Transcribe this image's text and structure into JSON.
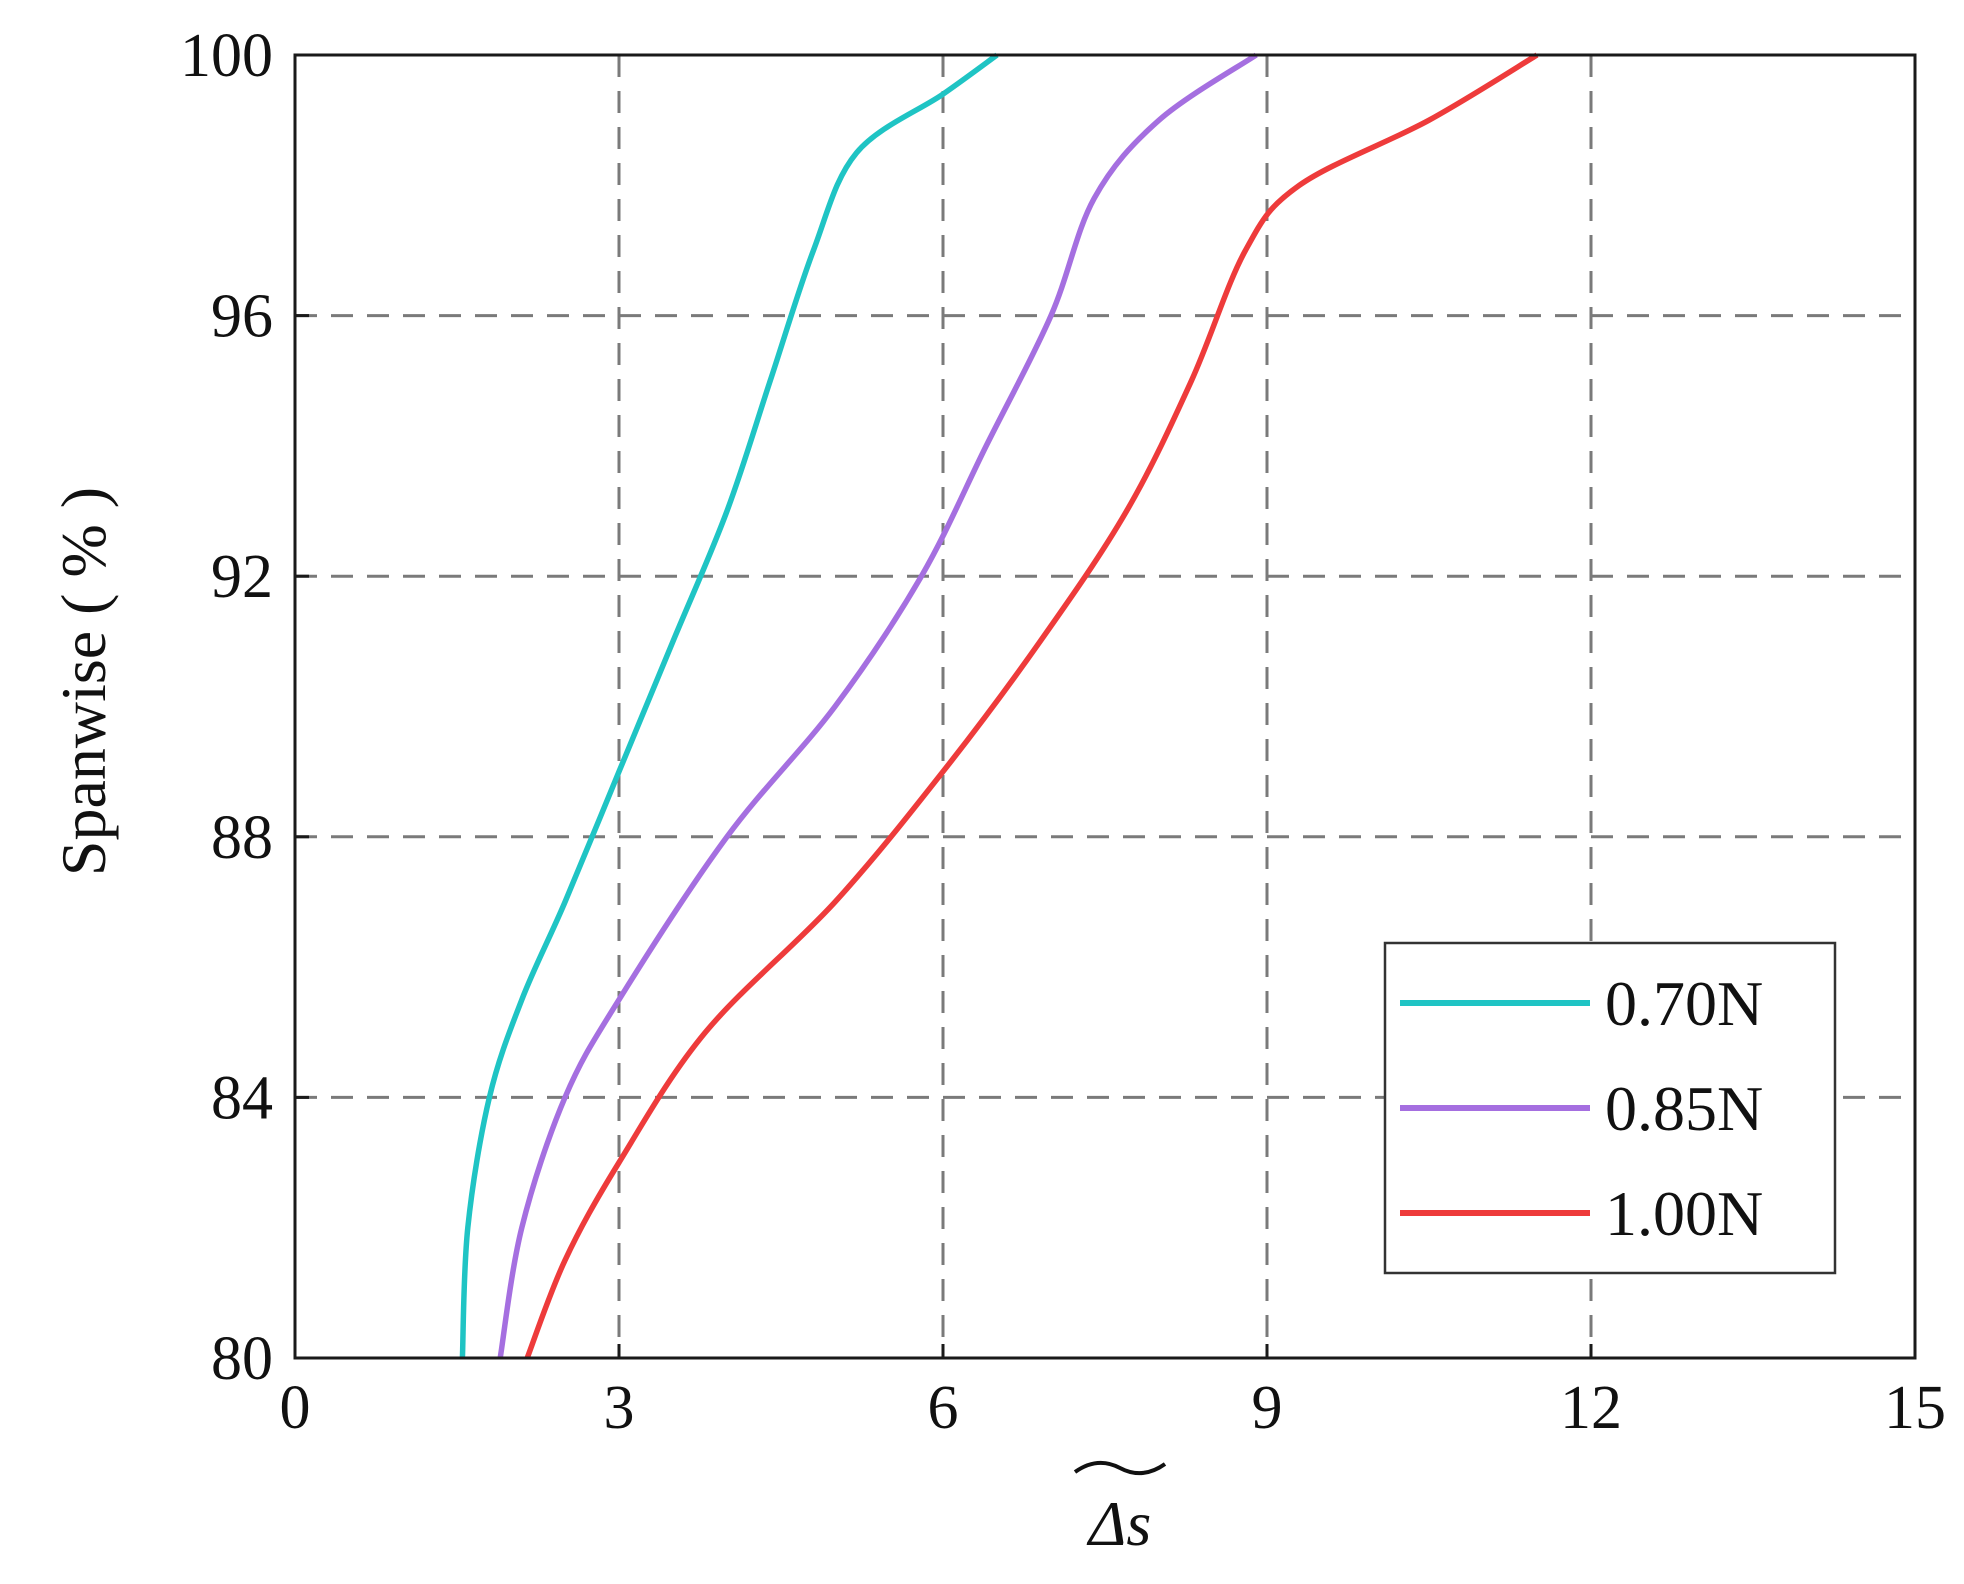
{
  "chart_data": {
    "type": "line",
    "title": "",
    "xlabel": "Δs",
    "xlabel_tilde": true,
    "ylabel": "Spanwise ( % )",
    "xlim": [
      0,
      15
    ],
    "ylim": [
      80,
      100
    ],
    "x_ticks": [
      0,
      3,
      6,
      9,
      12,
      15
    ],
    "y_ticks": [
      80,
      84,
      88,
      92,
      96,
      100
    ],
    "x_tick_labels": [
      "0",
      "3",
      "6",
      "9",
      "12",
      "15"
    ],
    "y_tick_labels": [
      "80",
      "84",
      "88",
      "92",
      "96",
      "100"
    ],
    "grid": true,
    "grid_style": "dashed",
    "legend_position": "bottom-right",
    "series": [
      {
        "name": "0.70N",
        "color": "#1fc4c4",
        "points": [
          [
            1.55,
            80
          ],
          [
            1.6,
            82
          ],
          [
            1.8,
            84
          ],
          [
            2.1,
            85.5
          ],
          [
            2.5,
            87
          ],
          [
            3.0,
            89
          ],
          [
            3.5,
            91
          ],
          [
            4.0,
            93
          ],
          [
            4.4,
            95
          ],
          [
            4.8,
            97
          ],
          [
            5.2,
            98.5
          ],
          [
            6.0,
            99.4
          ],
          [
            6.5,
            100
          ]
        ]
      },
      {
        "name": "0.85N",
        "color": "#a56fe0",
        "points": [
          [
            1.9,
            80
          ],
          [
            2.1,
            82
          ],
          [
            2.5,
            84
          ],
          [
            3.0,
            85.5
          ],
          [
            4.0,
            88
          ],
          [
            5.0,
            90
          ],
          [
            5.8,
            92
          ],
          [
            6.4,
            94
          ],
          [
            7.0,
            96
          ],
          [
            7.4,
            97.8
          ],
          [
            8.0,
            99
          ],
          [
            8.9,
            100
          ]
        ]
      },
      {
        "name": "1.00N",
        "color": "#ee3b3b",
        "points": [
          [
            2.15,
            80
          ],
          [
            2.5,
            81.5
          ],
          [
            3.0,
            83
          ],
          [
            3.8,
            85
          ],
          [
            5.0,
            87
          ],
          [
            6.0,
            89
          ],
          [
            6.9,
            91
          ],
          [
            7.7,
            93
          ],
          [
            8.3,
            95
          ],
          [
            8.8,
            97
          ],
          [
            9.3,
            98
          ],
          [
            10.5,
            99
          ],
          [
            11.5,
            100
          ]
        ]
      }
    ]
  }
}
